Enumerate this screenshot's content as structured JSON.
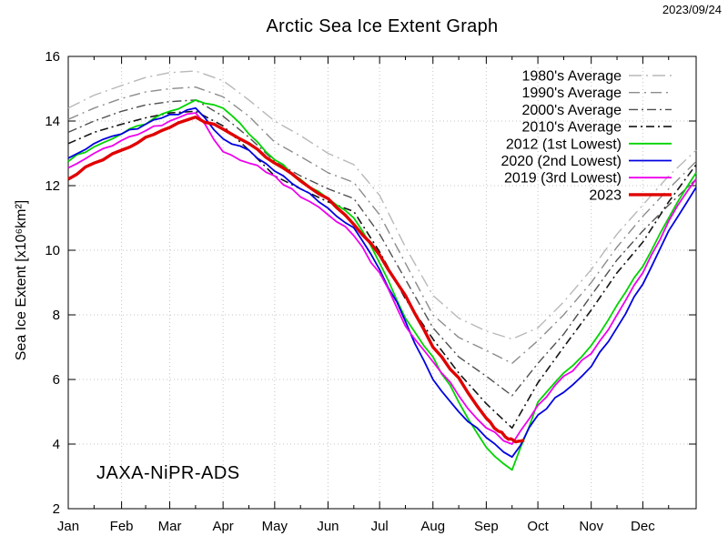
{
  "header": {
    "title": "Arctic Sea Ice Extent Graph",
    "date": "2023/09/24"
  },
  "chart_annotations": {
    "ylabel": "Sea Ice Extent [x10⁶km²]",
    "watermark": "JAXA-NiPR-ADS"
  },
  "chart_data": {
    "type": "line",
    "title": "Arctic Sea Ice Extent Graph",
    "date_annotation": "2023/09/24",
    "watermark": "JAXA-NiPR-ADS",
    "xlabel": "",
    "ylabel": "Sea Ice Extent [x10^6 km^2]",
    "x_unit": "day_of_year",
    "x_tick_labels": [
      "Jan",
      "Feb",
      "Mar",
      "Apr",
      "May",
      "Jun",
      "Jul",
      "Aug",
      "Sep",
      "Oct",
      "Nov",
      "Dec"
    ],
    "month_start_days": [
      0,
      31,
      59,
      90,
      120,
      151,
      181,
      212,
      243,
      273,
      304,
      334
    ],
    "month_mid_days": [
      15,
      45,
      74,
      105,
      135,
      166,
      196,
      227,
      258,
      288,
      319,
      349
    ],
    "days_in_year": 365,
    "y_ticks": [
      2,
      4,
      6,
      8,
      10,
      12,
      14,
      16
    ],
    "y_range": [
      2,
      16
    ],
    "grid": true,
    "legend_position": "top-right",
    "series": [
      {
        "name": "1980's Average",
        "color": "#b8b8b8",
        "width": 1.4,
        "dash": [
          14,
          5,
          2,
          5
        ],
        "jitter": 0,
        "days": [
          0,
          15,
          31,
          45,
          59,
          74,
          90,
          105,
          120,
          135,
          151,
          166,
          181,
          196,
          212,
          227,
          243,
          258,
          273,
          288,
          304,
          319,
          334,
          349,
          365
        ],
        "values": [
          14.4,
          14.8,
          15.1,
          15.35,
          15.5,
          15.55,
          15.25,
          14.65,
          14.0,
          13.55,
          13.0,
          12.65,
          11.7,
          10.1,
          8.6,
          7.9,
          7.5,
          7.25,
          7.6,
          8.4,
          9.4,
          10.5,
          11.4,
          12.3,
          13.1
        ]
      },
      {
        "name": "1990's Average",
        "color": "#8c8c8c",
        "width": 1.4,
        "dash": [
          12,
          5,
          2,
          5
        ],
        "jitter": 0,
        "days": [
          0,
          15,
          31,
          45,
          59,
          74,
          90,
          105,
          120,
          135,
          151,
          166,
          181,
          196,
          212,
          227,
          243,
          258,
          273,
          288,
          304,
          319,
          334,
          349,
          365
        ],
        "values": [
          14.05,
          14.4,
          14.7,
          14.9,
          15.0,
          15.05,
          14.75,
          14.15,
          13.35,
          12.9,
          12.4,
          12.1,
          11.1,
          9.6,
          8.0,
          7.3,
          6.9,
          6.5,
          7.2,
          8.0,
          9.0,
          10.1,
          11.05,
          11.9,
          12.75
        ]
      },
      {
        "name": "2000's Average",
        "color": "#4f4f4f",
        "width": 1.4,
        "dash": [
          10,
          4,
          2,
          4
        ],
        "jitter": 0,
        "days": [
          0,
          15,
          31,
          45,
          59,
          74,
          90,
          105,
          120,
          135,
          151,
          166,
          181,
          196,
          212,
          227,
          243,
          258,
          273,
          288,
          304,
          319,
          334,
          349,
          365
        ],
        "values": [
          13.65,
          14.0,
          14.3,
          14.5,
          14.6,
          14.65,
          14.15,
          13.5,
          12.75,
          12.3,
          11.9,
          11.6,
          10.5,
          9.1,
          7.6,
          6.7,
          6.1,
          5.5,
          6.5,
          7.4,
          8.6,
          9.7,
          10.6,
          11.4,
          12.2
        ]
      },
      {
        "name": "2010's Average",
        "color": "#141414",
        "width": 1.6,
        "dash": [
          9,
          4,
          2,
          4
        ],
        "jitter": 0,
        "days": [
          0,
          15,
          31,
          45,
          59,
          74,
          90,
          105,
          120,
          135,
          151,
          166,
          181,
          196,
          212,
          227,
          243,
          258,
          273,
          288,
          304,
          319,
          334,
          349,
          365
        ],
        "values": [
          13.3,
          13.65,
          13.9,
          14.1,
          14.25,
          14.3,
          13.85,
          13.1,
          12.3,
          11.9,
          11.5,
          11.2,
          9.95,
          8.5,
          7.25,
          6.2,
          5.25,
          4.5,
          5.9,
          7.0,
          8.15,
          9.3,
          10.25,
          11.5,
          12.65
        ]
      },
      {
        "name": "2012 (1st Lowest)",
        "color": "#00d400",
        "width": 1.8,
        "dash": null,
        "jitter": 0.07,
        "days": [
          0,
          15,
          31,
          45,
          59,
          74,
          90,
          105,
          120,
          135,
          151,
          166,
          181,
          196,
          212,
          227,
          243,
          258,
          273,
          288,
          304,
          319,
          334,
          349,
          365
        ],
        "values": [
          12.75,
          13.2,
          13.6,
          13.9,
          14.3,
          14.65,
          14.4,
          13.6,
          12.8,
          12.2,
          11.6,
          11.0,
          9.6,
          7.9,
          6.7,
          5.3,
          3.9,
          3.2,
          5.3,
          6.2,
          7.05,
          8.3,
          9.5,
          11.0,
          12.4
        ]
      },
      {
        "name": "2020 (2nd Lowest)",
        "color": "#0000e0",
        "width": 1.8,
        "dash": null,
        "jitter": 0.07,
        "days": [
          0,
          15,
          31,
          45,
          59,
          74,
          90,
          105,
          120,
          135,
          151,
          166,
          181,
          196,
          212,
          227,
          243,
          258,
          273,
          288,
          304,
          319,
          334,
          349,
          365
        ],
        "values": [
          12.85,
          13.3,
          13.6,
          13.9,
          14.2,
          14.4,
          13.45,
          13.1,
          12.45,
          11.9,
          11.3,
          10.7,
          9.4,
          7.8,
          6.0,
          5.0,
          4.2,
          3.6,
          4.9,
          5.6,
          6.4,
          7.6,
          8.95,
          10.6,
          11.95
        ]
      },
      {
        "name": "2019 (3rd Lowest)",
        "color": "#ee00ee",
        "width": 1.8,
        "dash": null,
        "jitter": 0.07,
        "days": [
          0,
          15,
          31,
          45,
          59,
          74,
          90,
          105,
          120,
          135,
          151,
          166,
          181,
          196,
          212,
          227,
          243,
          258,
          273,
          288,
          304,
          319,
          334,
          349,
          365
        ],
        "values": [
          12.55,
          13.0,
          13.4,
          13.7,
          14.0,
          14.25,
          13.05,
          12.7,
          12.3,
          11.65,
          11.1,
          10.45,
          9.3,
          7.65,
          6.55,
          5.5,
          4.5,
          4.0,
          5.2,
          6.1,
          6.8,
          8.0,
          9.3,
          10.9,
          12.2
        ]
      },
      {
        "name": "2023",
        "color": "#e00000",
        "width": 3.4,
        "dash": null,
        "jitter": 0.05,
        "days": [
          0,
          15,
          31,
          45,
          59,
          74,
          90,
          105,
          120,
          135,
          151,
          166,
          181,
          196,
          212,
          227,
          243,
          250,
          256,
          260,
          265
        ],
        "values": [
          12.2,
          12.7,
          13.1,
          13.5,
          13.8,
          14.12,
          13.75,
          13.3,
          12.7,
          12.15,
          11.6,
          10.8,
          9.85,
          8.6,
          7.0,
          6.05,
          4.8,
          4.4,
          4.15,
          4.07,
          4.12
        ]
      }
    ]
  }
}
